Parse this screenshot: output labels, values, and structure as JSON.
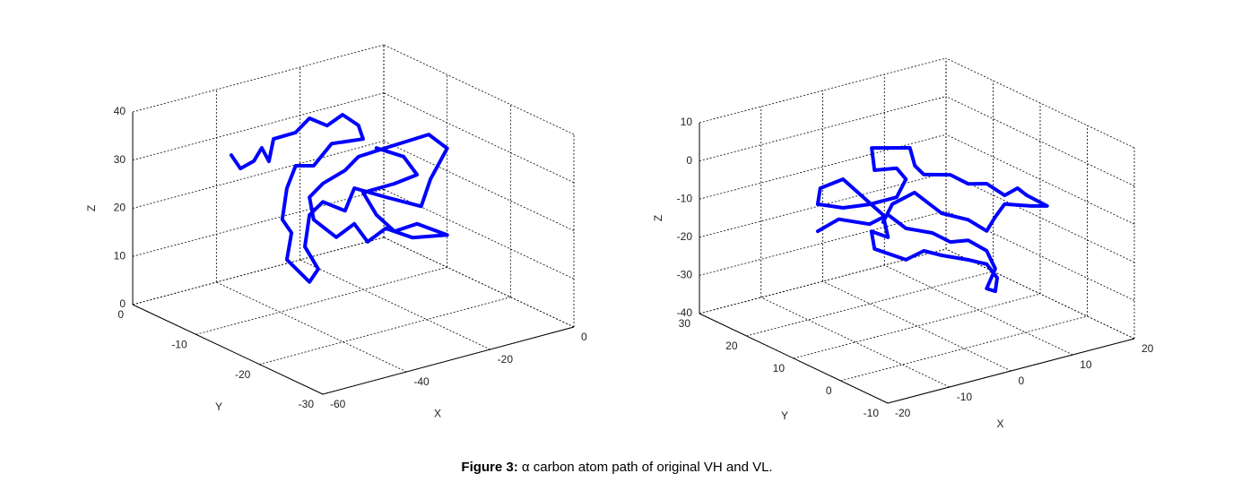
{
  "caption": {
    "label": "Figure 3:",
    "text": "α carbon atom path of original VH and VL."
  },
  "chart_data": [
    {
      "type": "line3d",
      "color": "#0000ff",
      "grid": true,
      "xlabel": "X",
      "ylabel": "Y",
      "zlabel": "Z",
      "xlim": [
        -60,
        0
      ],
      "ylim": [
        -30,
        0
      ],
      "zlim": [
        0,
        40
      ],
      "xticks": [
        -60,
        -40,
        -20,
        0
      ],
      "yticks": [
        -30,
        -20,
        -10,
        0
      ],
      "zticks": [
        0,
        10,
        20,
        30,
        40
      ],
      "x": [
        -51.6,
        -49.4,
        -46.2,
        -44.3,
        -42.6,
        -41.5,
        -36.2,
        -32.9,
        -28.7,
        -25.0,
        -21.2,
        -20.1,
        -27.6,
        -31.9,
        -36.2,
        -38.3,
        -39.4,
        -37.2,
        -38.3,
        -32.9,
        -30.8,
        -34.0,
        -32.9,
        -29.7,
        -24.4,
        -22.2,
        -14.7,
        -6.2,
        -4.0,
        0.0,
        -4.4,
        -14.7,
        -21.2,
        -24.4,
        -29.7,
        -32.9,
        -31.9,
        -26.5,
        -22.2,
        -19.0,
        -14.7,
        -8.3,
        0.0,
        -7.2,
        -12.6,
        -16.9,
        -20.1,
        -12.6,
        -7.2,
        -10.4,
        -16.9
      ],
      "y": [
        -10,
        -10,
        -10,
        -10,
        -10,
        -10,
        -10,
        -10,
        -10,
        -10,
        -10,
        -10,
        -10,
        -10,
        -10,
        -10,
        -10,
        -10,
        -10,
        -10,
        -10,
        -10,
        -10,
        -10,
        -10,
        -10,
        -10,
        -10,
        -10,
        -10,
        -10,
        -10,
        -10,
        -10,
        -10,
        -10,
        -10,
        -10,
        -10,
        -10,
        -10,
        -10,
        -10,
        -10,
        -10,
        -10,
        -10,
        -10,
        -10,
        -10,
        -10
      ],
      "z": [
        35.3,
        32.0,
        32.8,
        35.1,
        31.9,
        36.3,
        36.4,
        38.6,
        36.1,
        37.5,
        34.4,
        31.3,
        32.1,
        28.5,
        29.5,
        25.3,
        19.1,
        15.8,
        10.5,
        4.6,
        6.8,
        12.2,
        18.5,
        20.5,
        17.4,
        21.6,
        18.0,
        14.1,
        19.2,
        24.7,
        28.6,
        28.2,
        27.9,
        25.8,
        24.3,
        22.2,
        17.3,
        12.4,
        14.2,
        9.7,
        11.5,
        8.1,
        6.7,
        10.7,
        10.4,
        14.8,
        20.2,
        20.3,
        20.9,
        25.4,
        28.7
      ]
    },
    {
      "type": "line3d",
      "color": "#0000ff",
      "grid": true,
      "xlabel": "X",
      "ylabel": "Y",
      "zlabel": "Z",
      "xlim": [
        -20,
        20
      ],
      "ylim": [
        -10,
        30
      ],
      "zlim": [
        -40,
        10
      ],
      "xticks": [
        -20,
        -10,
        0,
        10,
        20
      ],
      "yticks": [
        -10,
        0,
        10,
        20,
        30
      ],
      "zticks": [
        -40,
        -30,
        -20,
        -10,
        0,
        10
      ],
      "x": [
        -19.9,
        -16.5,
        -11.5,
        -8.5,
        -5.6,
        -1.3,
        1.6,
        4.5,
        7.5,
        8.9,
        7.5,
        8.9,
        9.2,
        7.5,
        4.5,
        0.2,
        -2.7,
        -5.6,
        -10.7,
        -11.2,
        -8.5,
        -9.3,
        -12.2,
        -15.8,
        -19.5,
        -19.9,
        -15.8,
        -11.5,
        -7.1,
        -5.6,
        -7.1,
        -10.7,
        0.3,
        6.5,
        7.3,
        -2.7,
        1.6,
        4.5,
        7.5,
        10.4,
        12.5,
        14.0,
        17.3,
        14.7,
        10.4,
        8.9,
        7.5,
        4.5,
        0.2,
        -4.2,
        -7.8,
        -9.3
      ],
      "y": [
        5,
        5,
        5,
        5,
        5,
        5,
        5,
        5,
        5,
        5,
        5,
        5,
        5,
        5,
        5,
        5,
        5,
        5,
        5,
        5,
        5,
        5,
        5,
        5,
        5,
        5,
        5,
        5,
        5,
        5,
        5,
        5,
        20,
        20,
        20,
        5,
        5,
        5,
        5,
        5,
        5,
        5,
        5,
        5,
        5,
        5,
        5,
        5,
        5,
        5,
        5,
        5
      ],
      "z": [
        -3.8,
        -2.1,
        -5.5,
        -4.3,
        -9.1,
        -12.1,
        -15.7,
        -16.5,
        -20.5,
        -25.8,
        -30.4,
        -31.7,
        -28.3,
        -24.0,
        -21.6,
        -18.6,
        -16.2,
        -17.3,
        -12.3,
        -7.5,
        -10.2,
        -4.0,
        1.4,
        8.1,
        7.3,
        3.3,
        0.6,
        -0.3,
        -0.3,
        3.8,
        7.3,
        8.3,
        0.7,
        -1.9,
        -6.9,
        3.8,
        1.9,
        -1.7,
        -2.9,
        -7.2,
        -6.2,
        -8.7,
        -12.9,
        -11.8,
        -9.5,
        -12.2,
        -15.3,
        -11.1,
        -7.6,
        -0.3,
        -1.8,
        -5.9
      ]
    }
  ]
}
